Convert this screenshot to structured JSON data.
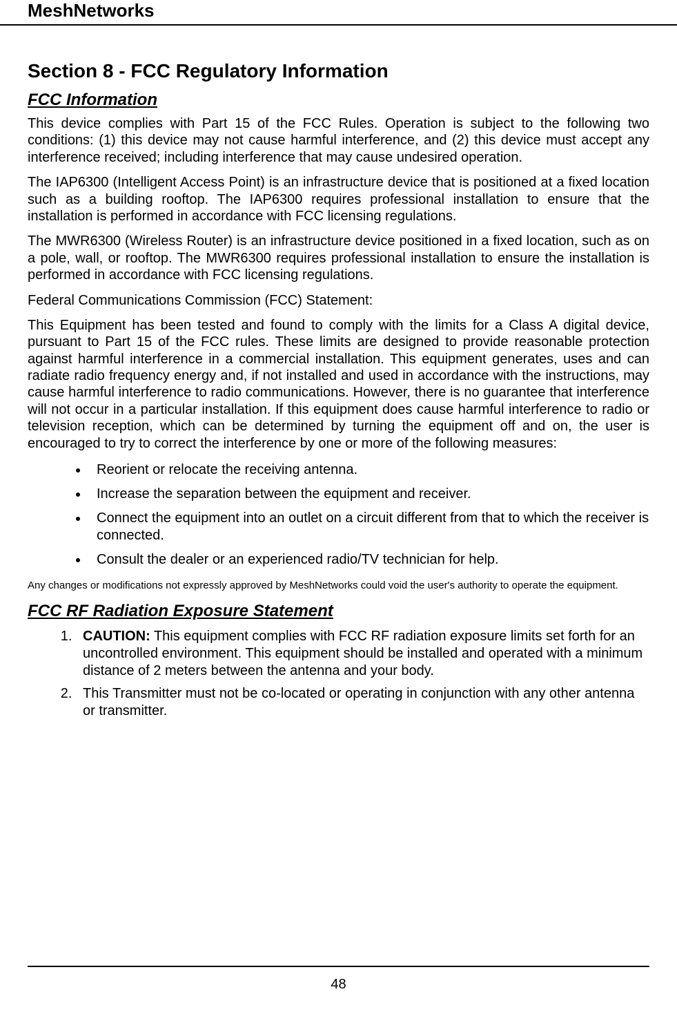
{
  "header": {
    "brand": "MeshNetworks"
  },
  "section": {
    "title": "Section 8 - FCC Regulatory Information",
    "sub1": "FCC Information",
    "p1": "This device complies with Part 15 of the FCC Rules.  Operation is subject to the following two conditions: (1) this device may not cause harmful interference, and (2) this device must accept any interference received; including interference that may cause undesired operation.",
    "p2": "The IAP6300 (Intelligent Access Point) is an infrastructure device that is positioned at a fixed location such as a building rooftop.  The IAP6300 requires professional installation to ensure that the installation is performed in accordance with FCC licensing regulations.",
    "p3": " The MWR6300 (Wireless Router) is an infrastructure device positioned in a fixed location, such as on a pole, wall, or rooftop.  The MWR6300 requires professional installation to ensure the installation is performed in accordance with FCC licensing regulations.",
    "p4": "Federal Communications Commission (FCC) Statement:",
    "p5": "This Equipment has been tested and found to comply with the limits for a Class A digital device, pursuant to Part 15 of the FCC rules.  These limits are designed to provide reasonable protection against harmful interference in a commercial installation.  This equipment generates, uses and can radiate radio frequency energy and, if not installed and used in accordance with the instructions, may cause harmful interference to radio communications.  However, there is no guarantee that interference will not occur in a particular installation.  If this equipment does cause harmful interference to radio or television reception, which can be determined by turning the equipment off and on, the user is encouraged to try to correct the interference by one or more of the following measures:",
    "bullets": [
      "Reorient or relocate the receiving antenna.",
      "Increase the separation between the equipment and receiver.",
      "Connect the equipment into an outlet on a circuit different from that to which the receiver is connected.",
      "Consult the dealer or an experienced radio/TV technician for help."
    ],
    "fine": "Any changes or modifications not expressly approved by MeshNetworks could void the user's authority to operate the equipment.",
    "sub2": "FCC RF Radiation Exposure Statement",
    "ol": [
      {
        "caution": "CAUTION:",
        "text": "  This equipment complies with FCC RF radiation exposure limits set forth for an uncontrolled environment.  This equipment should be installed and operated with a minimum distance of 2 meters between the antenna and your body."
      },
      {
        "caution": "",
        "text": "This Transmitter must not be co-located or operating in conjunction with any other antenna or transmitter."
      }
    ]
  },
  "footer": {
    "page": "48"
  }
}
